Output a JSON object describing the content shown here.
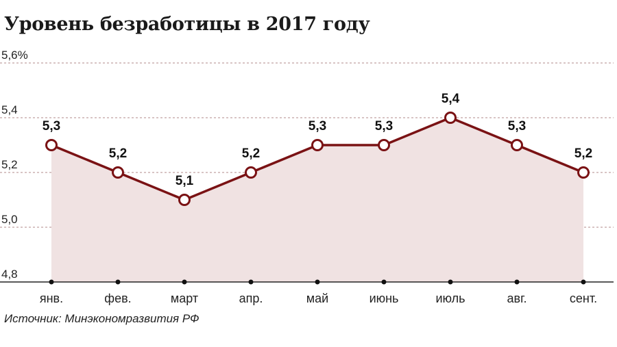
{
  "title": "Уровень безработицы в 2017 году",
  "source": "Источник: Минэкономразвития РФ",
  "colors": {
    "line": "#7a1214",
    "area": "#f0e2e2",
    "grid": "#b08a8a",
    "axis": "#222222"
  },
  "chart_data": {
    "type": "area",
    "title": "Уровень безработицы в 2017 году",
    "xlabel": "",
    "ylabel": "",
    "categories": [
      "янв.",
      "фев.",
      "март",
      "апр.",
      "май",
      "июнь",
      "июль",
      "авг.",
      "сент."
    ],
    "values": [
      5.3,
      5.2,
      5.1,
      5.2,
      5.3,
      5.3,
      5.4,
      5.3,
      5.2
    ],
    "value_labels": [
      "5,3",
      "5,2",
      "5,1",
      "5,2",
      "5,3",
      "5,3",
      "5,4",
      "5,3",
      "5,2"
    ],
    "ylim": [
      4.8,
      5.6
    ],
    "yticks": [
      4.8,
      5.0,
      5.2,
      5.4,
      5.6
    ],
    "ytick_labels": [
      "4,8",
      "5,0",
      "5,2",
      "5,4",
      "5,6%"
    ],
    "grid": true
  }
}
